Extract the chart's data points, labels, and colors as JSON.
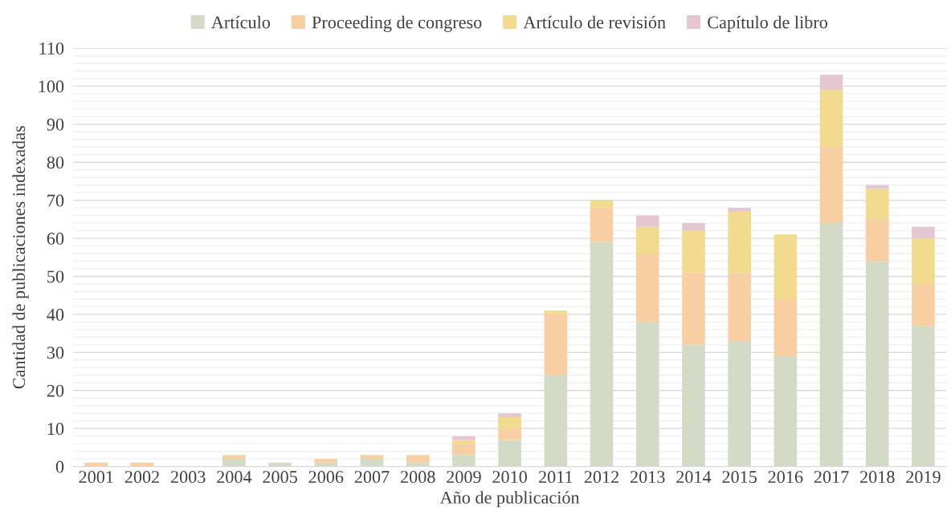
{
  "chart_data": {
    "type": "bar",
    "stacked": true,
    "xlabel": "Año de publicación",
    "ylabel": "Cantidad de publicaciones indexadas",
    "categories": [
      "2001",
      "2002",
      "2003",
      "2004",
      "2005",
      "2006",
      "2007",
      "2008",
      "2009",
      "2010",
      "2011",
      "2012",
      "2013",
      "2014",
      "2015",
      "2016",
      "2017",
      "2018",
      "2019"
    ],
    "series": [
      {
        "name": "Artículo",
        "color": "#d3dbc7",
        "values": [
          0,
          0,
          0,
          2,
          1,
          1,
          2,
          1,
          3,
          7,
          24,
          59,
          38,
          32,
          33,
          29,
          64,
          54,
          37
        ]
      },
      {
        "name": "Proceeding de congreso",
        "color": "#f8cfa2",
        "values": [
          1,
          1,
          0,
          1,
          0,
          1,
          1,
          2,
          3,
          3,
          16,
          9,
          18,
          19,
          18,
          15,
          20,
          11,
          11
        ]
      },
      {
        "name": "Artículo de revisión",
        "color": "#f0db8f",
        "values": [
          0,
          0,
          0,
          0,
          0,
          0,
          0,
          0,
          1,
          3,
          1,
          2,
          7,
          11,
          16,
          17,
          15,
          8,
          12
        ]
      },
      {
        "name": "Capítulo de libro",
        "color": "#e5c7d3",
        "values": [
          0,
          0,
          0,
          0,
          0,
          0,
          0,
          0,
          1,
          1,
          0,
          0,
          3,
          2,
          1,
          0,
          4,
          1,
          3
        ]
      }
    ],
    "ylim": [
      0,
      110
    ],
    "yticks": [
      0,
      {
        "value": 2,
        "label": null
      },
      {
        "value": 4,
        "label": null
      },
      {
        "value": 6,
        "label": null
      },
      {
        "value": 8,
        "label": null
      },
      10,
      {
        "value": 12,
        "label": null
      },
      {
        "value": 14,
        "label": null
      },
      {
        "value": 16,
        "label": null
      },
      {
        "value": 18,
        "label": null
      },
      20,
      {
        "value": 22,
        "label": null
      },
      {
        "value": 24,
        "label": null
      },
      {
        "value": 26,
        "label": null
      },
      {
        "value": 28,
        "label": null
      },
      30,
      {
        "value": 32,
        "label": null
      },
      {
        "value": 34,
        "label": null
      },
      {
        "value": 36,
        "label": null
      },
      {
        "value": 38,
        "label": null
      },
      40,
      {
        "value": 42,
        "label": null
      },
      {
        "value": 44,
        "label": null
      },
      {
        "value": 46,
        "label": null
      },
      {
        "value": 48,
        "label": null
      },
      50,
      {
        "value": 52,
        "label": null
      },
      {
        "value": 54,
        "label": null
      },
      {
        "value": 56,
        "label": null
      },
      {
        "value": 58,
        "label": null
      },
      60,
      {
        "value": 62,
        "label": null
      },
      {
        "value": 64,
        "label": null
      },
      {
        "value": 66,
        "label": null
      },
      {
        "value": 68,
        "label": null
      },
      70,
      {
        "value": 72,
        "label": null
      },
      {
        "value": 74,
        "label": null
      },
      {
        "value": 76,
        "label": null
      },
      {
        "value": 78,
        "label": null
      },
      80,
      {
        "value": 82,
        "label": null
      },
      {
        "value": 84,
        "label": null
      },
      {
        "value": 86,
        "label": null
      },
      {
        "value": 88,
        "label": null
      },
      90,
      {
        "value": 92,
        "label": null
      },
      {
        "value": 94,
        "label": null
      },
      {
        "value": 96,
        "label": null
      },
      {
        "value": 98,
        "label": null
      },
      100,
      {
        "value": 102,
        "label": null
      },
      {
        "value": 104,
        "label": null
      },
      {
        "value": 106,
        "label": null
      },
      {
        "value": 108,
        "label": null
      },
      110
    ],
    "grid": "y",
    "legend": "top"
  }
}
